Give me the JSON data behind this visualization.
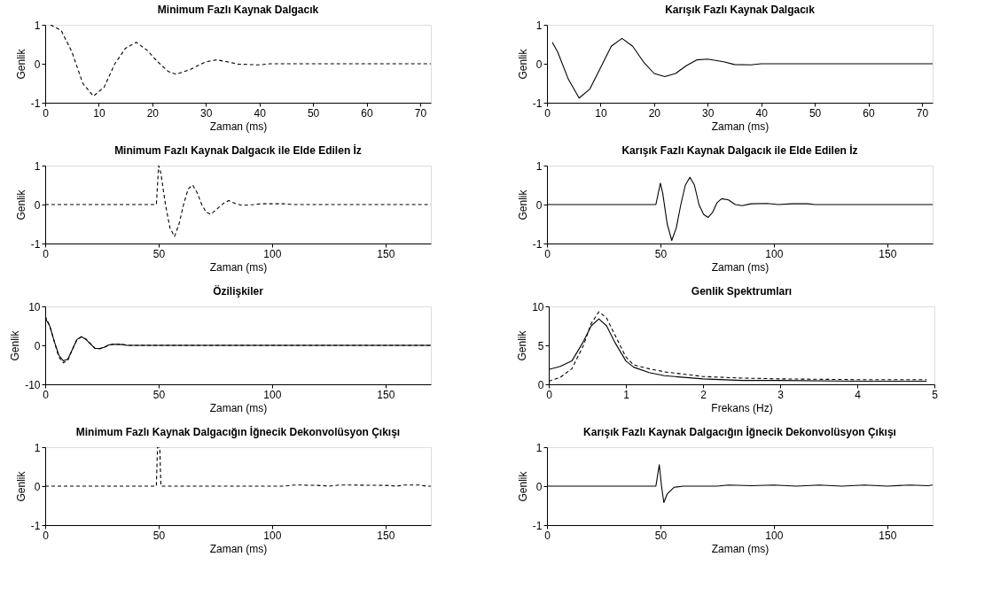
{
  "chart_data": [
    {
      "type": "line",
      "title": "Minimum Fazlı Kaynak Dalgacık",
      "xlabel": "Zaman (ms)",
      "ylabel": "Genlik",
      "xlim": [
        0,
        72
      ],
      "xticks": [
        0,
        10,
        20,
        30,
        40,
        50,
        60,
        70
      ],
      "ylim": [
        -1,
        1
      ],
      "yticks": [
        -1,
        0,
        1
      ],
      "grid": false,
      "series": [
        {
          "color": "#000000",
          "line_style": "dashed",
          "x": [
            1,
            3,
            5,
            7,
            9,
            11,
            13,
            15,
            17,
            19,
            21,
            23,
            24.5,
            27,
            30,
            32,
            34,
            36,
            40,
            42,
            72
          ],
          "values": [
            1,
            0.85,
            0.3,
            -0.5,
            -0.83,
            -0.6,
            0,
            0.4,
            0.55,
            0.35,
            0.05,
            -0.2,
            -0.27,
            -0.15,
            0.05,
            0.1,
            0.05,
            -0.01,
            -0.03,
            0,
            0
          ]
        }
      ]
    },
    {
      "type": "line",
      "title": "Karışık Fazlı Kaynak Dalgacık",
      "xlabel": "Zaman (ms)",
      "ylabel": "Genlik",
      "xlim": [
        0,
        72
      ],
      "xticks": [
        0,
        10,
        20,
        30,
        40,
        50,
        60,
        70
      ],
      "ylim": [
        -1,
        1
      ],
      "yticks": [
        -1,
        0,
        1
      ],
      "grid": false,
      "series": [
        {
          "color": "#000000",
          "line_style": "solid",
          "x": [
            1,
            2,
            4,
            6,
            8,
            10,
            12,
            14,
            16,
            18,
            20,
            22,
            24,
            26,
            28,
            30,
            33,
            35,
            38,
            40,
            72
          ],
          "values": [
            0.55,
            0.3,
            -0.4,
            -0.88,
            -0.65,
            -0.1,
            0.45,
            0.65,
            0.45,
            0.05,
            -0.25,
            -0.33,
            -0.25,
            -0.05,
            0.1,
            0.12,
            0.05,
            -0.02,
            -0.03,
            0,
            0
          ]
        }
      ]
    },
    {
      "type": "line",
      "title": "Minimum Fazlı Kaynak Dalgacık ile Elde Edilen İz",
      "xlabel": "Zaman (ms)",
      "ylabel": "Genlik",
      "xlim": [
        0,
        170
      ],
      "xticks": [
        0,
        50,
        100,
        150
      ],
      "ylim": [
        -1,
        1
      ],
      "yticks": [
        -1,
        0,
        1
      ],
      "grid": false,
      "series": [
        {
          "color": "#000000",
          "line_style": "dashed",
          "x": [
            0,
            49,
            50,
            51,
            53,
            55,
            57,
            59,
            61,
            63,
            65,
            67,
            69,
            71,
            73,
            76,
            79,
            81,
            84,
            87,
            92,
            95,
            105,
            110,
            170
          ],
          "values": [
            0,
            0,
            1,
            0.8,
            0,
            -0.6,
            -0.82,
            -0.5,
            0,
            0.4,
            0.5,
            0.3,
            0,
            -0.2,
            -0.25,
            -0.1,
            0.05,
            0.1,
            0.02,
            -0.02,
            0,
            0.02,
            0.02,
            0,
            0
          ]
        }
      ]
    },
    {
      "type": "line",
      "title": "Karışık Fazlı Kaynak Dalgacık ile Elde Edilen İz",
      "xlabel": "Zaman (ms)",
      "ylabel": "Genlik",
      "xlim": [
        0,
        170
      ],
      "xticks": [
        0,
        50,
        100,
        150
      ],
      "ylim": [
        -1,
        1
      ],
      "yticks": [
        -1,
        0,
        1
      ],
      "grid": false,
      "series": [
        {
          "color": "#000000",
          "line_style": "solid",
          "x": [
            0,
            48,
            50,
            51,
            53,
            55,
            57,
            59,
            61,
            63,
            65,
            67,
            69,
            71,
            73,
            75,
            77,
            80,
            83,
            86,
            90,
            97,
            102,
            108,
            115,
            118,
            170
          ],
          "values": [
            0,
            0,
            0.55,
            0.3,
            -0.5,
            -0.92,
            -0.6,
            0,
            0.5,
            0.7,
            0.5,
            0,
            -0.25,
            -0.33,
            -0.2,
            0.05,
            0.15,
            0.12,
            0,
            -0.03,
            0.02,
            0.03,
            0,
            0.02,
            0.02,
            0,
            0
          ]
        }
      ]
    },
    {
      "type": "line",
      "title": "Özilişkiler",
      "xlabel": "Zaman (ms)",
      "ylabel": "Genlik",
      "xlim": [
        0,
        170
      ],
      "xticks": [
        0,
        50,
        100,
        150
      ],
      "ylim": [
        -10,
        10
      ],
      "yticks": [
        -10,
        0,
        10
      ],
      "grid": false,
      "series": [
        {
          "color": "#000000",
          "line_style": "solid",
          "x": [
            0,
            2,
            4,
            6,
            8,
            10,
            12,
            14,
            16,
            18,
            20,
            22,
            24,
            26,
            28,
            30,
            34,
            36,
            170
          ],
          "values": [
            7,
            5,
            1,
            -2.5,
            -4,
            -3.5,
            -1,
            1.5,
            2.2,
            1.5,
            0.3,
            -0.8,
            -0.8,
            -0.5,
            0.1,
            0.3,
            0.2,
            0,
            0
          ]
        },
        {
          "color": "#000000",
          "line_style": "dashed",
          "x": [
            0,
            2,
            4,
            6,
            8,
            10,
            12,
            14,
            16,
            18,
            20,
            22,
            24,
            26,
            28,
            30,
            34,
            36,
            170
          ],
          "values": [
            7.5,
            5,
            1,
            -3,
            -4.5,
            -3.8,
            -1,
            1.5,
            2.2,
            1.6,
            0.4,
            -0.8,
            -0.9,
            -0.5,
            0,
            0.3,
            0.3,
            0,
            0
          ]
        }
      ]
    },
    {
      "type": "line",
      "title": "Genlik Spektrumları",
      "xlabel": "Frekans (Hz)",
      "ylabel": "Genlik",
      "xlim": [
        0,
        5
      ],
      "xticks": [
        0,
        1,
        2,
        3,
        4,
        5
      ],
      "ylim": [
        0,
        10
      ],
      "yticks": [
        0,
        5,
        10
      ],
      "grid": false,
      "series": [
        {
          "color": "#000000",
          "line_style": "solid",
          "x": [
            0,
            0.15,
            0.3,
            0.45,
            0.55,
            0.65,
            0.75,
            0.85,
            1.0,
            1.1,
            1.3,
            1.5,
            2,
            2.5,
            3,
            4,
            4.9
          ],
          "values": [
            1.9,
            2.3,
            3,
            5.5,
            7.5,
            8.4,
            7.5,
            5.5,
            3,
            2.2,
            1.5,
            1.1,
            0.7,
            0.5,
            0.5,
            0.4,
            0.4
          ]
        },
        {
          "color": "#000000",
          "line_style": "dashed",
          "x": [
            0,
            0.15,
            0.3,
            0.45,
            0.55,
            0.65,
            0.75,
            0.85,
            1.0,
            1.1,
            1.3,
            1.5,
            2,
            2.5,
            3,
            4,
            4.9
          ],
          "values": [
            0.4,
            0.9,
            2,
            5,
            7.8,
            9.3,
            8.5,
            6.5,
            3.5,
            2.5,
            2,
            1.6,
            1,
            0.8,
            0.7,
            0.6,
            0.6
          ]
        }
      ]
    },
    {
      "type": "line",
      "title": "Minimum Fazlı Kaynak Dalgacığın İğnecik Dekonvolüsyon Çıkışı",
      "xlabel": "Zaman (ms)",
      "ylabel": "Genlik",
      "xlim": [
        0,
        170
      ],
      "xticks": [
        0,
        50,
        100,
        150
      ],
      "ylim": [
        -1,
        1
      ],
      "yticks": [
        -1,
        0,
        1
      ],
      "grid": false,
      "series": [
        {
          "color": "#000000",
          "line_style": "dashed",
          "x": [
            0,
            49,
            49.5,
            50.5,
            51,
            105,
            110,
            120,
            125,
            130,
            150,
            155,
            158,
            165,
            168,
            170
          ],
          "values": [
            0,
            0,
            1,
            1,
            0,
            0,
            0.03,
            0.02,
            0,
            0.03,
            0.02,
            0,
            0.03,
            0.03,
            0,
            0
          ]
        }
      ]
    },
    {
      "type": "line",
      "title": "Karışık Fazlı Kaynak Dalgacığın İğnecik Dekonvolüsyon Çıkışı",
      "xlabel": "Zaman (ms)",
      "ylabel": "Genlik",
      "xlim": [
        0,
        170
      ],
      "xticks": [
        0,
        50,
        100,
        150
      ],
      "ylim": [
        -1,
        1
      ],
      "yticks": [
        -1,
        0,
        1
      ],
      "grid": false,
      "series": [
        {
          "color": "#000000",
          "line_style": "solid",
          "x": [
            0,
            48,
            49.5,
            50.5,
            51.5,
            53,
            56,
            60,
            75,
            80,
            90,
            100,
            110,
            120,
            130,
            140,
            150,
            160,
            168,
            170
          ],
          "values": [
            0,
            0,
            0.55,
            0,
            -0.42,
            -0.2,
            -0.03,
            0,
            0,
            0.03,
            0.01,
            0.03,
            0,
            0.03,
            0,
            0.03,
            0,
            0.03,
            0.01,
            0.03
          ]
        }
      ]
    }
  ]
}
